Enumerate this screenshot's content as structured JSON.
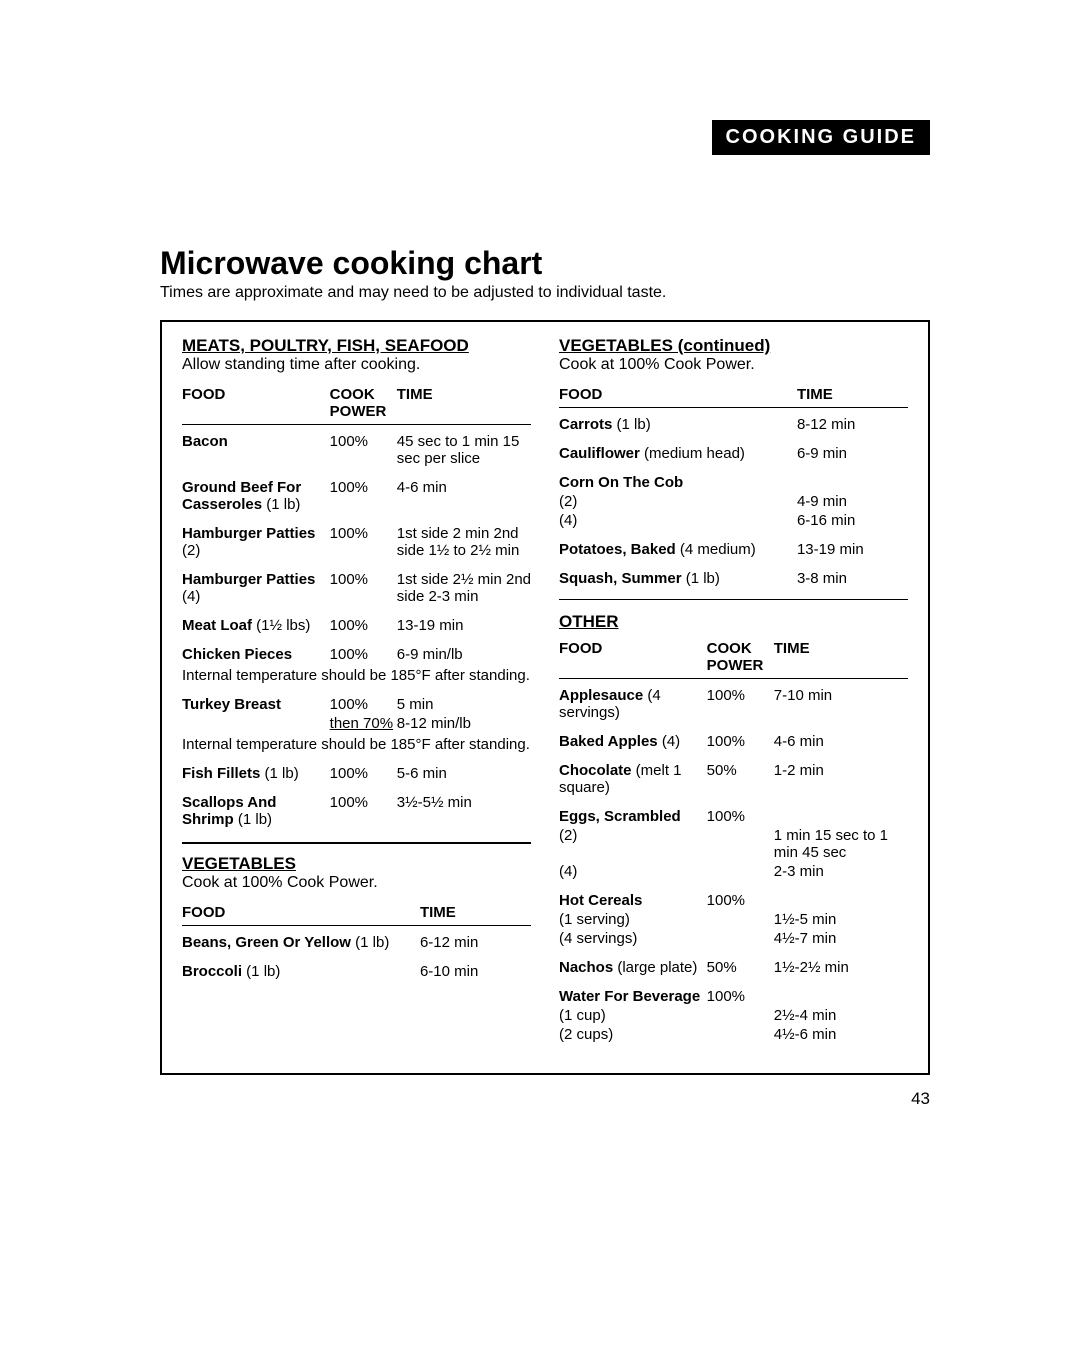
{
  "header_badge": "COOKING GUIDE",
  "title": "Microwave cooking chart",
  "subtitle": "Times are approximate and may need to be adjusted to individual taste.",
  "page_number": "43",
  "sections": {
    "meats": {
      "title": "MEATS, POULTRY, FISH, SEAFOOD",
      "sub": "Allow standing time after cooking.",
      "headers": {
        "food": "FOOD",
        "power": "COOK POWER",
        "time": "TIME"
      },
      "items": [
        {
          "food": "Bacon",
          "detail": "",
          "power": "100%",
          "time": "45 sec to 1 min 15 sec per slice"
        },
        {
          "food": "Ground Beef For Casseroles",
          "detail": "(1 lb)",
          "power": "100%",
          "time": "4-6 min"
        },
        {
          "food": "Hamburger Patties",
          "detail": "(2)",
          "power": "100%",
          "time": "1st side 2 min 2nd side 1½ to 2½ min"
        },
        {
          "food": "Hamburger Patties",
          "detail": "(4)",
          "power": "100%",
          "time": "1st side 2½ min 2nd side 2-3 min"
        },
        {
          "food": "Meat Loaf",
          "detail": "(1½ lbs)",
          "power": "100%",
          "time": "13-19 min"
        },
        {
          "food": "Chicken Pieces",
          "detail": "",
          "power": "100%",
          "time": "6-9 min/lb",
          "note": "Internal temperature should be 185°F after standing."
        },
        {
          "food": "Turkey Breast",
          "detail": "",
          "power": "100%",
          "time": "5 min",
          "power2": "then 70%",
          "time2": "8-12 min/lb",
          "note": "Internal temperature should be 185°F after standing."
        },
        {
          "food": "Fish Fillets",
          "detail": "(1 lb)",
          "power": "100%",
          "time": "5-6 min"
        },
        {
          "food": "Scallops And Shrimp",
          "detail": "(1 lb)",
          "power": "100%",
          "time": "3½-5½ min"
        }
      ]
    },
    "vegetables1": {
      "title": "VEGETABLES",
      "sub": "Cook at 100% Cook Power.",
      "headers": {
        "food": "FOOD",
        "time": "TIME"
      },
      "items": [
        {
          "food": "Beans, Green Or Yellow",
          "detail": "(1 lb)",
          "time": "6-12 min"
        },
        {
          "food": "Broccoli",
          "detail": "(1 lb)",
          "time": "6-10 min"
        }
      ]
    },
    "vegetables2": {
      "title": "VEGETABLES  (continued)",
      "sub": "Cook at 100% Cook Power.",
      "headers": {
        "food": "FOOD",
        "time": "TIME"
      },
      "items": [
        {
          "food": "Carrots",
          "detail": "(1 lb)",
          "time": "8-12 min"
        },
        {
          "food": "Cauliflower",
          "detail": "(medium head)",
          "time": "6-9 min"
        },
        {
          "food": "Corn On The Cob",
          "detail": "",
          "sub_items": [
            {
              "label": "(2)",
              "time": "4-9 min"
            },
            {
              "label": "(4)",
              "time": "6-16 min"
            }
          ]
        },
        {
          "food": "Potatoes, Baked",
          "detail": "(4 medium)",
          "time": "13-19 min"
        },
        {
          "food": "Squash, Summer",
          "detail": "(1 lb)",
          "time": "3-8 min"
        }
      ]
    },
    "other": {
      "title": "OTHER",
      "headers": {
        "food": "FOOD",
        "power": "COOK POWER",
        "time": "TIME"
      },
      "items": [
        {
          "food": "Applesauce",
          "detail": "(4 servings)",
          "power": "100%",
          "time": "7-10 min"
        },
        {
          "food": "Baked Apples",
          "detail": "(4)",
          "power": "100%",
          "time": "4-6 min"
        },
        {
          "food": "Chocolate",
          "detail": "(melt 1 square)",
          "power": "50%",
          "time": "1-2 min"
        },
        {
          "food": "Eggs, Scrambled",
          "detail": "",
          "power": "100%",
          "sub_items": [
            {
              "label": "(2)",
              "time": "1 min 15 sec to 1 min 45 sec"
            },
            {
              "label": "(4)",
              "time": "2-3 min"
            }
          ]
        },
        {
          "food": "Hot Cereals",
          "detail": "",
          "power": "100%",
          "sub_items": [
            {
              "label": "(1 serving)",
              "time": "1½-5 min"
            },
            {
              "label": "(4 servings)",
              "time": "4½-7 min"
            }
          ]
        },
        {
          "food": "Nachos",
          "detail": "(large plate)",
          "power": "50%",
          "time": "1½-2½ min"
        },
        {
          "food": "Water For Beverage",
          "detail": "",
          "power": "100%",
          "sub_items": [
            {
              "label": "(1 cup)",
              "time": "2½-4 min"
            },
            {
              "label": "(2 cups)",
              "time": "4½-6 min"
            }
          ]
        }
      ]
    }
  }
}
